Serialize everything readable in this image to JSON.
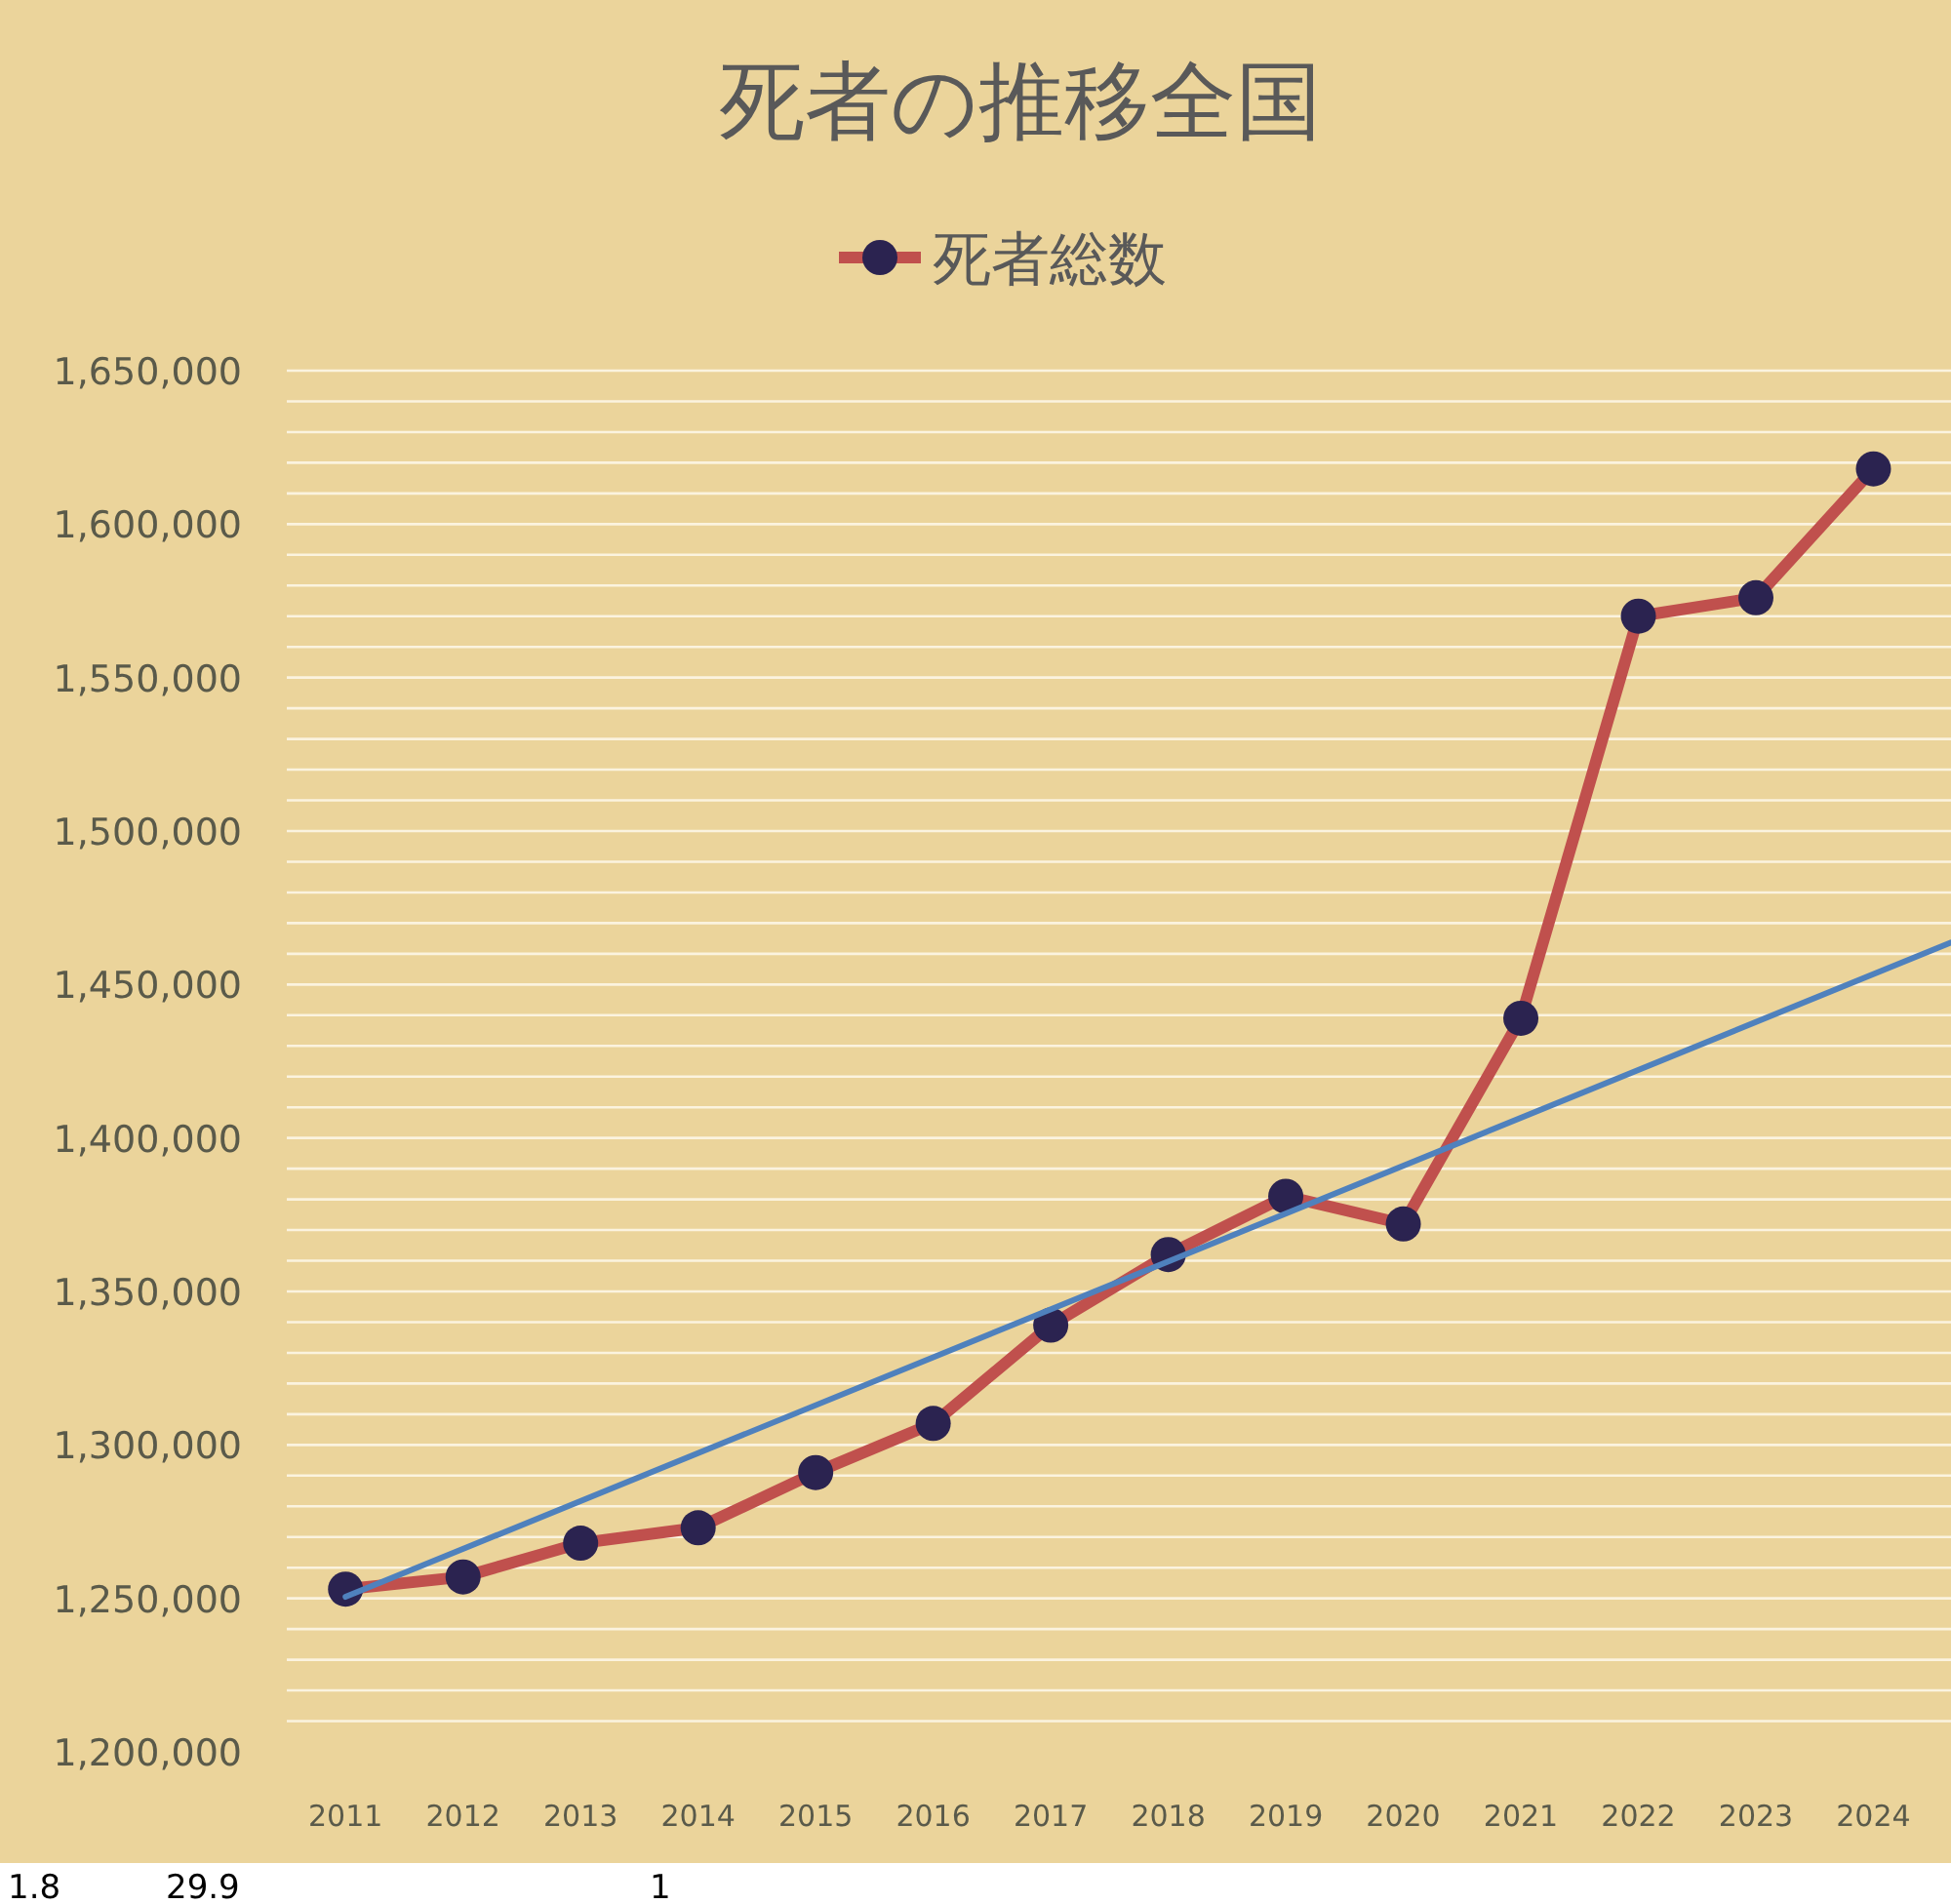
{
  "chart_data": {
    "type": "line",
    "title": "死者の推移全国",
    "x": [
      2011,
      2012,
      2013,
      2014,
      2015,
      2016,
      2017,
      2018,
      2019,
      2020,
      2021,
      2022,
      2023,
      2024
    ],
    "series": [
      {
        "name": "死者総数",
        "color": "#c0504d",
        "values": [
          1253000,
          1257000,
          1268000,
          1273000,
          1291000,
          1307000,
          1339000,
          1362000,
          1381000,
          1372000,
          1439000,
          1570000,
          1576000,
          1618000
        ]
      },
      {
        "type": "line",
        "color": "#4f81bd",
        "x": [
          2011,
          2024.66
        ],
        "values": [
          1250500,
          1463700
        ],
        "marker": "none"
      }
    ],
    "xlim": [
      2010.5,
      2024.66
    ],
    "xticks": [
      2011,
      2012,
      2013,
      2014,
      2015,
      2016,
      2017,
      2018,
      2019,
      2020,
      2021,
      2022,
      2023,
      2024
    ],
    "ylim": [
      1200000,
      1650000
    ],
    "yticks": [
      {
        "value": 1200000,
        "label": "1,200,000"
      },
      {
        "value": 1250000,
        "label": "1,250,000"
      },
      {
        "value": 1300000,
        "label": "1,300,000"
      },
      {
        "value": 1350000,
        "label": "1,350,000"
      },
      {
        "value": 1400000,
        "label": "1,400,000"
      },
      {
        "value": 1450000,
        "label": "1,450,000"
      },
      {
        "value": 1500000,
        "label": "1,500,000"
      },
      {
        "value": 1550000,
        "label": "1,550,000"
      },
      {
        "value": 1600000,
        "label": "1,600,000"
      },
      {
        "value": 1650000,
        "label": "1,650,000"
      }
    ],
    "grid": "y",
    "legend": "top",
    "marker": "circle",
    "annotations": [
      "1.8",
      "29.9",
      "1"
    ]
  }
}
